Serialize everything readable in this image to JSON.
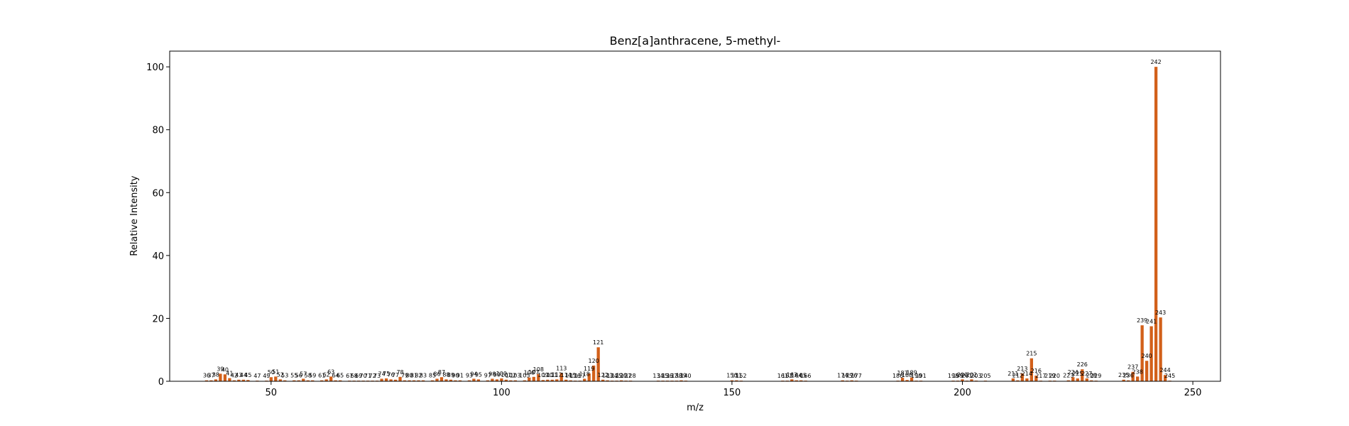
{
  "chart_data": {
    "type": "bar",
    "title": "Benz[a]anthracene, 5-methyl-",
    "xlabel": "m/z",
    "ylabel": "Relative Intensity",
    "xlim": [
      28,
      256
    ],
    "ylim": [
      0,
      105
    ],
    "xticks": [
      50,
      100,
      150,
      200,
      250
    ],
    "yticks": [
      0,
      20,
      40,
      60,
      80,
      100
    ],
    "bar_color": "#d2601a",
    "peaks": [
      {
        "mz": 36,
        "intensity": 0.3,
        "label": "36"
      },
      {
        "mz": 37,
        "intensity": 0.3,
        "label": "37"
      },
      {
        "mz": 38,
        "intensity": 0.6,
        "label": "38"
      },
      {
        "mz": 39,
        "intensity": 2.4,
        "label": "39"
      },
      {
        "mz": 40,
        "intensity": 2.2,
        "label": "40"
      },
      {
        "mz": 41,
        "intensity": 1.0,
        "label": "41"
      },
      {
        "mz": 42,
        "intensity": 0.3,
        "label": "42"
      },
      {
        "mz": 43,
        "intensity": 0.5,
        "label": "43"
      },
      {
        "mz": 44,
        "intensity": 0.5,
        "label": "44"
      },
      {
        "mz": 45,
        "intensity": 0.4,
        "label": "45"
      },
      {
        "mz": 47,
        "intensity": 0.2,
        "label": "47"
      },
      {
        "mz": 49,
        "intensity": 0.2,
        "label": "49"
      },
      {
        "mz": 50,
        "intensity": 1.3,
        "label": "50"
      },
      {
        "mz": 51,
        "intensity": 1.5,
        "label": "51"
      },
      {
        "mz": 52,
        "intensity": 0.6,
        "label": "52"
      },
      {
        "mz": 53,
        "intensity": 0.3,
        "label": "53"
      },
      {
        "mz": 55,
        "intensity": 0.3,
        "label": "55"
      },
      {
        "mz": 56,
        "intensity": 0.3,
        "label": "56"
      },
      {
        "mz": 57,
        "intensity": 0.8,
        "label": "57"
      },
      {
        "mz": 58,
        "intensity": 0.3,
        "label": "58"
      },
      {
        "mz": 59,
        "intensity": 0.3,
        "label": "59"
      },
      {
        "mz": 61,
        "intensity": 0.3,
        "label": "61"
      },
      {
        "mz": 62,
        "intensity": 0.6,
        "label": "62"
      },
      {
        "mz": 63,
        "intensity": 1.5,
        "label": "63"
      },
      {
        "mz": 64,
        "intensity": 0.3,
        "label": "64"
      },
      {
        "mz": 65,
        "intensity": 0.3,
        "label": "65"
      },
      {
        "mz": 67,
        "intensity": 0.2,
        "label": "67"
      },
      {
        "mz": 68,
        "intensity": 0.2,
        "label": "68"
      },
      {
        "mz": 69,
        "intensity": 0.2,
        "label": "69"
      },
      {
        "mz": 70,
        "intensity": 0.2,
        "label": "70"
      },
      {
        "mz": 71,
        "intensity": 0.2,
        "label": "71"
      },
      {
        "mz": 72,
        "intensity": 0.2,
        "label": "72"
      },
      {
        "mz": 73,
        "intensity": 0.2,
        "label": "73"
      },
      {
        "mz": 74,
        "intensity": 0.8,
        "label": "74"
      },
      {
        "mz": 75,
        "intensity": 0.9,
        "label": "75"
      },
      {
        "mz": 76,
        "intensity": 0.6,
        "label": "76"
      },
      {
        "mz": 77,
        "intensity": 0.5,
        "label": "77"
      },
      {
        "mz": 78,
        "intensity": 1.4,
        "label": "78"
      },
      {
        "mz": 79,
        "intensity": 0.3,
        "label": "79"
      },
      {
        "mz": 80,
        "intensity": 0.3,
        "label": "80"
      },
      {
        "mz": 81,
        "intensity": 0.3,
        "label": "81"
      },
      {
        "mz": 82,
        "intensity": 0.3,
        "label": "82"
      },
      {
        "mz": 83,
        "intensity": 0.3,
        "label": "83"
      },
      {
        "mz": 85,
        "intensity": 0.3,
        "label": "85"
      },
      {
        "mz": 86,
        "intensity": 0.8,
        "label": "86"
      },
      {
        "mz": 87,
        "intensity": 1.3,
        "label": "87"
      },
      {
        "mz": 88,
        "intensity": 0.6,
        "label": "88"
      },
      {
        "mz": 89,
        "intensity": 0.5,
        "label": "89"
      },
      {
        "mz": 90,
        "intensity": 0.3,
        "label": "90"
      },
      {
        "mz": 91,
        "intensity": 0.3,
        "label": "91"
      },
      {
        "mz": 93,
        "intensity": 0.3,
        "label": "93"
      },
      {
        "mz": 94,
        "intensity": 0.8,
        "label": "94"
      },
      {
        "mz": 95,
        "intensity": 0.6,
        "label": "95"
      },
      {
        "mz": 97,
        "intensity": 0.3,
        "label": "97"
      },
      {
        "mz": 98,
        "intensity": 0.8,
        "label": "98"
      },
      {
        "mz": 99,
        "intensity": 0.6,
        "label": "99"
      },
      {
        "mz": 100,
        "intensity": 0.9,
        "label": "100"
      },
      {
        "mz": 101,
        "intensity": 0.5,
        "label": "101"
      },
      {
        "mz": 102,
        "intensity": 0.3,
        "label": "102"
      },
      {
        "mz": 103,
        "intensity": 0.3,
        "label": "103"
      },
      {
        "mz": 105,
        "intensity": 0.3,
        "label": "105"
      },
      {
        "mz": 106,
        "intensity": 1.2,
        "label": "106"
      },
      {
        "mz": 107,
        "intensity": 1.4,
        "label": "107"
      },
      {
        "mz": 108,
        "intensity": 2.3,
        "label": "108"
      },
      {
        "mz": 109,
        "intensity": 0.4,
        "label": "109"
      },
      {
        "mz": 110,
        "intensity": 0.5,
        "label": "110"
      },
      {
        "mz": 111,
        "intensity": 0.5,
        "label": "111"
      },
      {
        "mz": 112,
        "intensity": 0.6,
        "label": "112"
      },
      {
        "mz": 113,
        "intensity": 2.6,
        "label": "113"
      },
      {
        "mz": 114,
        "intensity": 0.5,
        "label": "114"
      },
      {
        "mz": 115,
        "intensity": 0.3,
        "label": "115"
      },
      {
        "mz": 116,
        "intensity": 0.2,
        "label": "116"
      },
      {
        "mz": 117,
        "intensity": 0.2,
        "label": "117"
      },
      {
        "mz": 118,
        "intensity": 0.8,
        "label": "118"
      },
      {
        "mz": 119,
        "intensity": 2.5,
        "label": "119"
      },
      {
        "mz": 120,
        "intensity": 5.0,
        "label": "120"
      },
      {
        "mz": 121,
        "intensity": 10.8,
        "label": "121"
      },
      {
        "mz": 122,
        "intensity": 0.5,
        "label": "122"
      },
      {
        "mz": 123,
        "intensity": 0.3,
        "label": "123"
      },
      {
        "mz": 124,
        "intensity": 0.2,
        "label": "124"
      },
      {
        "mz": 125,
        "intensity": 0.2,
        "label": "125"
      },
      {
        "mz": 126,
        "intensity": 0.3,
        "label": "126"
      },
      {
        "mz": 127,
        "intensity": 0.2,
        "label": "127"
      },
      {
        "mz": 128,
        "intensity": 0.2,
        "label": "128"
      },
      {
        "mz": 134,
        "intensity": 0.2,
        "label": "134"
      },
      {
        "mz": 135,
        "intensity": 0.2,
        "label": "135"
      },
      {
        "mz": 136,
        "intensity": 0.2,
        "label": "136"
      },
      {
        "mz": 137,
        "intensity": 0.2,
        "label": "137"
      },
      {
        "mz": 138,
        "intensity": 0.2,
        "label": "138"
      },
      {
        "mz": 139,
        "intensity": 0.3,
        "label": "139"
      },
      {
        "mz": 140,
        "intensity": 0.2,
        "label": "140"
      },
      {
        "mz": 150,
        "intensity": 0.3,
        "label": "150"
      },
      {
        "mz": 151,
        "intensity": 0.3,
        "label": "151"
      },
      {
        "mz": 152,
        "intensity": 0.2,
        "label": "152"
      },
      {
        "mz": 161,
        "intensity": 0.2,
        "label": "161"
      },
      {
        "mz": 162,
        "intensity": 0.2,
        "label": "162"
      },
      {
        "mz": 163,
        "intensity": 0.6,
        "label": "163"
      },
      {
        "mz": 164,
        "intensity": 0.3,
        "label": "164"
      },
      {
        "mz": 165,
        "intensity": 0.3,
        "label": "165"
      },
      {
        "mz": 166,
        "intensity": 0.2,
        "label": "166"
      },
      {
        "mz": 174,
        "intensity": 0.3,
        "label": "174"
      },
      {
        "mz": 175,
        "intensity": 0.2,
        "label": "175"
      },
      {
        "mz": 176,
        "intensity": 0.3,
        "label": "176"
      },
      {
        "mz": 177,
        "intensity": 0.2,
        "label": "177"
      },
      {
        "mz": 186,
        "intensity": 0.2,
        "label": "186"
      },
      {
        "mz": 187,
        "intensity": 1.1,
        "label": "187"
      },
      {
        "mz": 188,
        "intensity": 0.4,
        "label": "188"
      },
      {
        "mz": 189,
        "intensity": 1.2,
        "label": "189"
      },
      {
        "mz": 190,
        "intensity": 0.2,
        "label": "190"
      },
      {
        "mz": 191,
        "intensity": 0.2,
        "label": "191"
      },
      {
        "mz": 198,
        "intensity": 0.2,
        "label": "198"
      },
      {
        "mz": 199,
        "intensity": 0.2,
        "label": "199"
      },
      {
        "mz": 200,
        "intensity": 0.6,
        "label": "200"
      },
      {
        "mz": 201,
        "intensity": 0.2,
        "label": "201"
      },
      {
        "mz": 202,
        "intensity": 0.6,
        "label": "202"
      },
      {
        "mz": 203,
        "intensity": 0.2,
        "label": "203"
      },
      {
        "mz": 205,
        "intensity": 0.2,
        "label": "205"
      },
      {
        "mz": 211,
        "intensity": 0.9,
        "label": "211"
      },
      {
        "mz": 212,
        "intensity": 0.3,
        "label": "212"
      },
      {
        "mz": 213,
        "intensity": 2.5,
        "label": "213"
      },
      {
        "mz": 214,
        "intensity": 0.9,
        "label": "214"
      },
      {
        "mz": 215,
        "intensity": 7.3,
        "label": "215"
      },
      {
        "mz": 216,
        "intensity": 1.8,
        "label": "216"
      },
      {
        "mz": 217,
        "intensity": 0.2,
        "label": "217"
      },
      {
        "mz": 219,
        "intensity": 0.2,
        "label": "219"
      },
      {
        "mz": 220,
        "intensity": 0.2,
        "label": "220"
      },
      {
        "mz": 223,
        "intensity": 0.3,
        "label": "223"
      },
      {
        "mz": 224,
        "intensity": 1.3,
        "label": "224"
      },
      {
        "mz": 225,
        "intensity": 0.9,
        "label": "225"
      },
      {
        "mz": 226,
        "intensity": 3.8,
        "label": "226"
      },
      {
        "mz": 227,
        "intensity": 0.9,
        "label": "227"
      },
      {
        "mz": 228,
        "intensity": 0.3,
        "label": "228"
      },
      {
        "mz": 229,
        "intensity": 0.2,
        "label": "229"
      },
      {
        "mz": 235,
        "intensity": 0.5,
        "label": "235"
      },
      {
        "mz": 236,
        "intensity": 0.3,
        "label": "236"
      },
      {
        "mz": 237,
        "intensity": 3.0,
        "label": "237"
      },
      {
        "mz": 238,
        "intensity": 1.5,
        "label": "238"
      },
      {
        "mz": 239,
        "intensity": 17.8,
        "label": "239"
      },
      {
        "mz": 240,
        "intensity": 6.5,
        "label": "240"
      },
      {
        "mz": 241,
        "intensity": 17.5,
        "label": "241"
      },
      {
        "mz": 242,
        "intensity": 100,
        "label": "242"
      },
      {
        "mz": 243,
        "intensity": 20.3,
        "label": "243"
      },
      {
        "mz": 244,
        "intensity": 2.0,
        "label": "244"
      },
      {
        "mz": 245,
        "intensity": 0.2,
        "label": "245"
      }
    ]
  }
}
